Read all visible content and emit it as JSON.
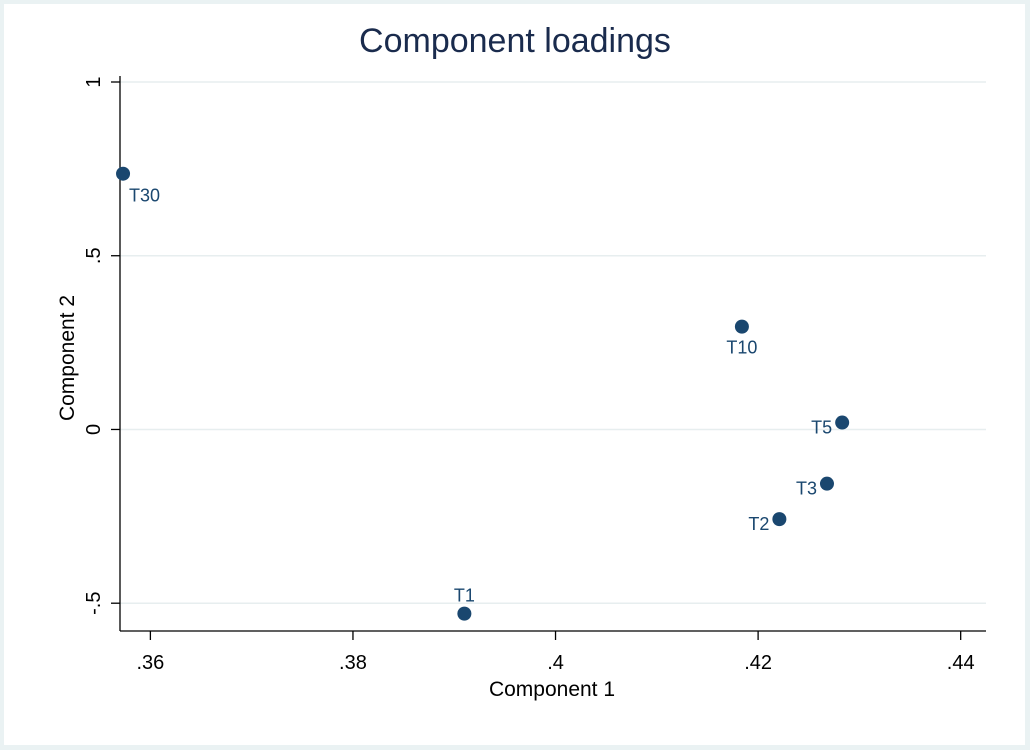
{
  "chart_data": {
    "type": "scatter",
    "title": "Component loadings",
    "xlabel": "Component 1",
    "ylabel": "Component 2",
    "xlim": [
      0.357,
      0.4425
    ],
    "ylim": [
      -0.58,
      1.0
    ],
    "x_ticks": [
      0.36,
      0.38,
      0.4,
      0.42,
      0.44
    ],
    "x_tick_labels": [
      ".36",
      ".38",
      ".4",
      ".42",
      ".44"
    ],
    "y_ticks": [
      -0.5,
      0,
      0.5,
      1
    ],
    "y_tick_labels": [
      "-.5",
      "0",
      ".5",
      "1"
    ],
    "grid": true,
    "marker_color": "#1a476f",
    "points": [
      {
        "label": "T30",
        "x": 0.3573,
        "y": 0.736,
        "label_pos": "below-right"
      },
      {
        "label": "T10",
        "x": 0.4184,
        "y": 0.296,
        "label_pos": "below"
      },
      {
        "label": "T5",
        "x": 0.4283,
        "y": 0.02,
        "label_pos": "left"
      },
      {
        "label": "T3",
        "x": 0.4268,
        "y": -0.156,
        "label_pos": "left"
      },
      {
        "label": "T2",
        "x": 0.4221,
        "y": -0.258,
        "label_pos": "left"
      },
      {
        "label": "T1",
        "x": 0.391,
        "y": -0.53,
        "label_pos": "above"
      }
    ]
  }
}
